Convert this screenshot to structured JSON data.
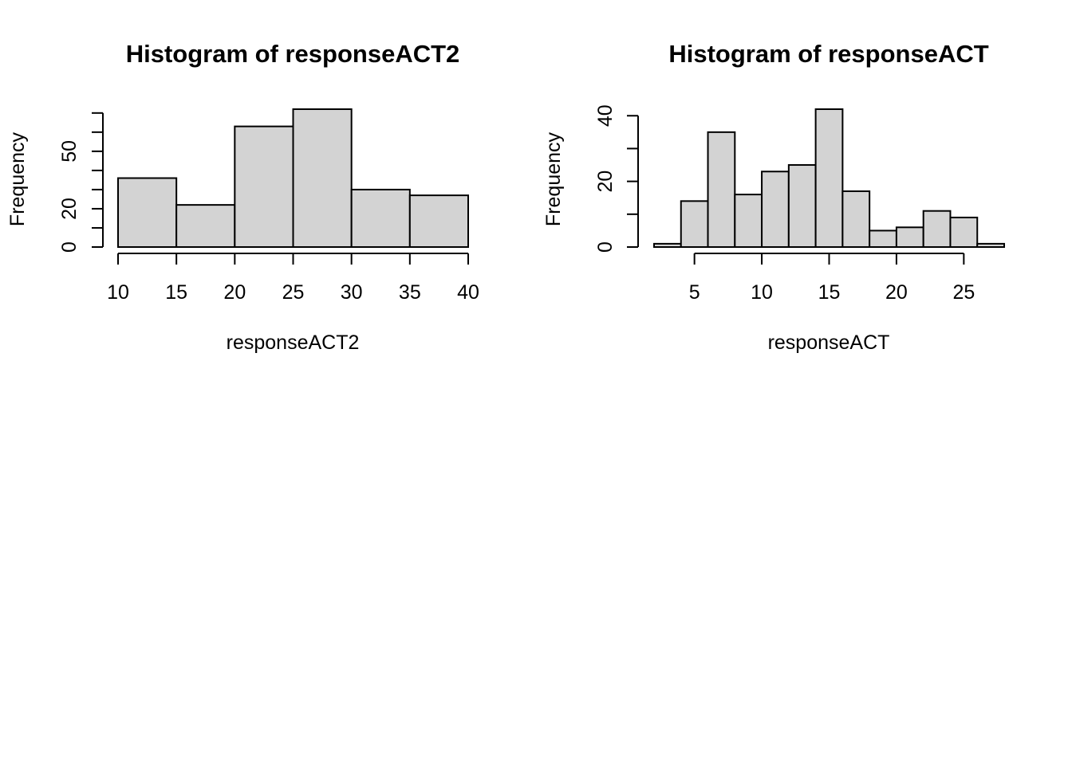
{
  "chart_data": [
    {
      "type": "bar",
      "title": "Histogram of responseACT2",
      "xlabel": "responseACT2",
      "ylabel": "Frequency",
      "breaks": [
        10,
        15,
        20,
        25,
        30,
        35,
        40
      ],
      "values": [
        36,
        22,
        63,
        72,
        30,
        27
      ],
      "xlim": [
        10,
        40
      ],
      "ylim": [
        0,
        72
      ],
      "xticks": [
        10,
        15,
        20,
        25,
        30,
        35,
        40
      ],
      "yticks": [
        0,
        10,
        20,
        30,
        40,
        50,
        60,
        70
      ],
      "ytick_labels": [
        "0",
        "",
        "20",
        "",
        "",
        "50",
        "",
        ""
      ],
      "grid": false,
      "bar_color": "#d3d3d3"
    },
    {
      "type": "bar",
      "title": "Histogram of responseACT",
      "xlabel": "responseACT",
      "ylabel": "Frequency",
      "breaks": [
        2,
        4,
        6,
        8,
        10,
        12,
        14,
        16,
        18,
        20,
        22,
        24,
        26,
        28
      ],
      "values": [
        1,
        14,
        35,
        16,
        23,
        25,
        42,
        17,
        5,
        6,
        11,
        9,
        1
      ],
      "xlim": [
        2,
        28
      ],
      "ylim": [
        0,
        42
      ],
      "xticks": [
        5,
        10,
        15,
        20,
        25
      ],
      "yticks": [
        0,
        10,
        20,
        30,
        40
      ],
      "ytick_labels": [
        "0",
        "",
        "20",
        "",
        "40"
      ],
      "grid": false,
      "bar_color": "#d3d3d3"
    }
  ]
}
